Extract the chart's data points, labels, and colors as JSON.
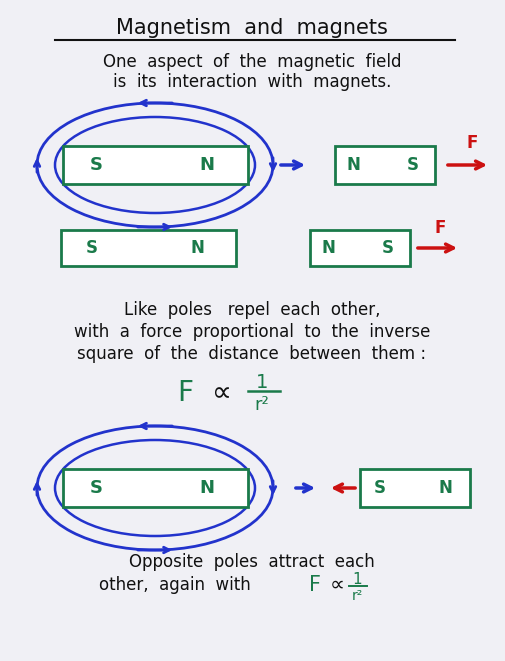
{
  "title": "Magnetism  and  magnets",
  "subtitle1": "One  aspect  of  the  magnetic  field",
  "subtitle2": "is  its  interaction  with  magnets.",
  "bg_color": "#f0f0f5",
  "text_color": "#111111",
  "green_color": "#1a7a4a",
  "blue_color": "#2233cc",
  "red_color": "#cc1111",
  "like_poles_line1": "Like  poles   repel  each  other,",
  "like_poles_line2": "with  a  force  proportional  to  the  inverse",
  "like_poles_line3": "square  of  the  distance  between  them :",
  "opposite_line1": "Opposite  poles  attract  each",
  "opposite_line2": "other,  again  with"
}
